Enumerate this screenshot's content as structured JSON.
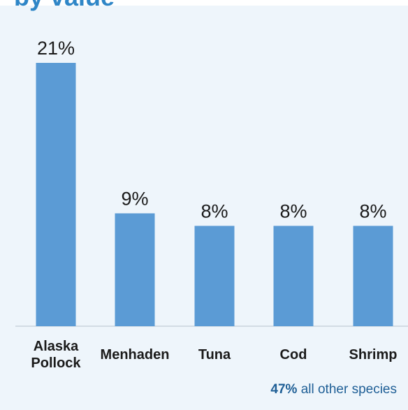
{
  "header": {
    "title": "by value"
  },
  "chart_data": {
    "type": "bar",
    "categories": [
      [
        "Alaska",
        "Pollock"
      ],
      [
        "Menhaden"
      ],
      [
        "Tuna"
      ],
      [
        "Cod"
      ],
      [
        "Shrimp"
      ]
    ],
    "values": [
      21,
      9,
      8,
      8,
      8
    ],
    "value_labels": [
      "21%",
      "9%",
      "8%",
      "8%",
      "8%"
    ],
    "ylim": [
      0,
      21
    ],
    "bar_color": "#5b9bd5",
    "axis_color": "#c9d3dc",
    "grid": false,
    "legend": "none"
  },
  "footnote": {
    "percent": "47%",
    "text": " all other species"
  }
}
